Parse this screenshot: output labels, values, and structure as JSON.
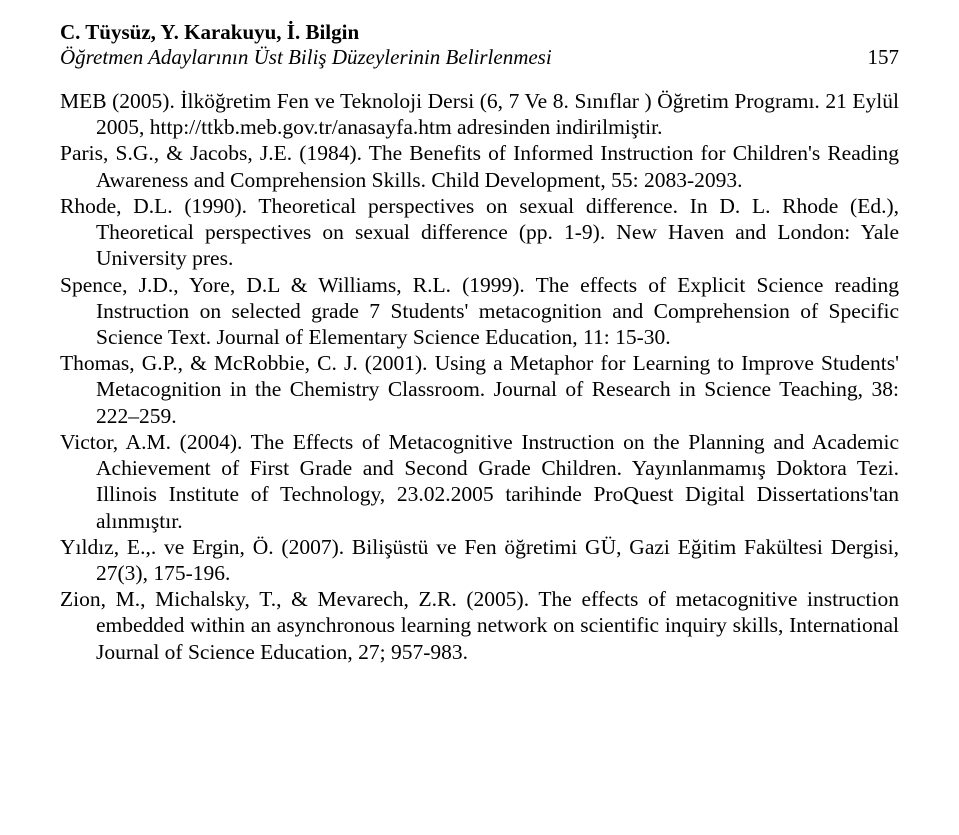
{
  "header": {
    "authors": "C. Tüysüz, Y. Karakuyu, İ. Bilgin",
    "running_title": "Öğretmen Adaylarının Üst Biliş Düzeylerinin Belirlenmesi",
    "page_number": "157"
  },
  "references": [
    "MEB (2005). İlköğretim Fen ve Teknoloji Dersi (6, 7 Ve 8. Sınıflar ) Öğretim Programı. 21 Eylül 2005, http://ttkb.meb.gov.tr/anasayfa.htm adresinden indirilmiştir.",
    "Paris, S.G., & Jacobs, J.E. (1984). The Benefits of Informed Instruction for Children's Reading Awareness and Comprehension Skills. Child Development, 55: 2083-2093.",
    "Rhode, D.L. (1990). Theoretical perspectives on sexual difference. In D. L. Rhode (Ed.), Theoretical perspectives on sexual difference (pp. 1-9). New Haven and London: Yale University pres.",
    "Spence, J.D., Yore, D.L & Williams, R.L. (1999). The effects of Explicit Science reading Instruction on selected grade 7 Students' metacognition and Comprehension of Specific Science Text. Journal of Elementary Science Education, 11: 15-30.",
    "Thomas, G.P., & McRobbie, C. J. (2001). Using a Metaphor for Learning to Improve Students' Metacognition in the Chemistry Classroom. Journal of Research in Science Teaching, 38: 222–259.",
    "Victor, A.M. (2004). The Effects of Metacognitive Instruction on the Planning and Academic Achievement of First Grade and Second Grade Children. Yayınlanmamış Doktora Tezi. Illinois Institute of Technology, 23.02.2005 tarihinde ProQuest Digital Dissertations'tan alınmıştır.",
    "Yıldız, E.,. ve Ergin, Ö. (2007). Bilişüstü ve Fen öğretimi GÜ, Gazi Eğitim Fakültesi Dergisi, 27(3), 175-196.",
    "Zion, M., Michalsky, T., & Mevarech, Z.R. (2005). The effects of metacognitive instruction embedded within an asynchronous learning network on scientific inquiry skills, International Journal of Science Education, 27; 957-983."
  ]
}
